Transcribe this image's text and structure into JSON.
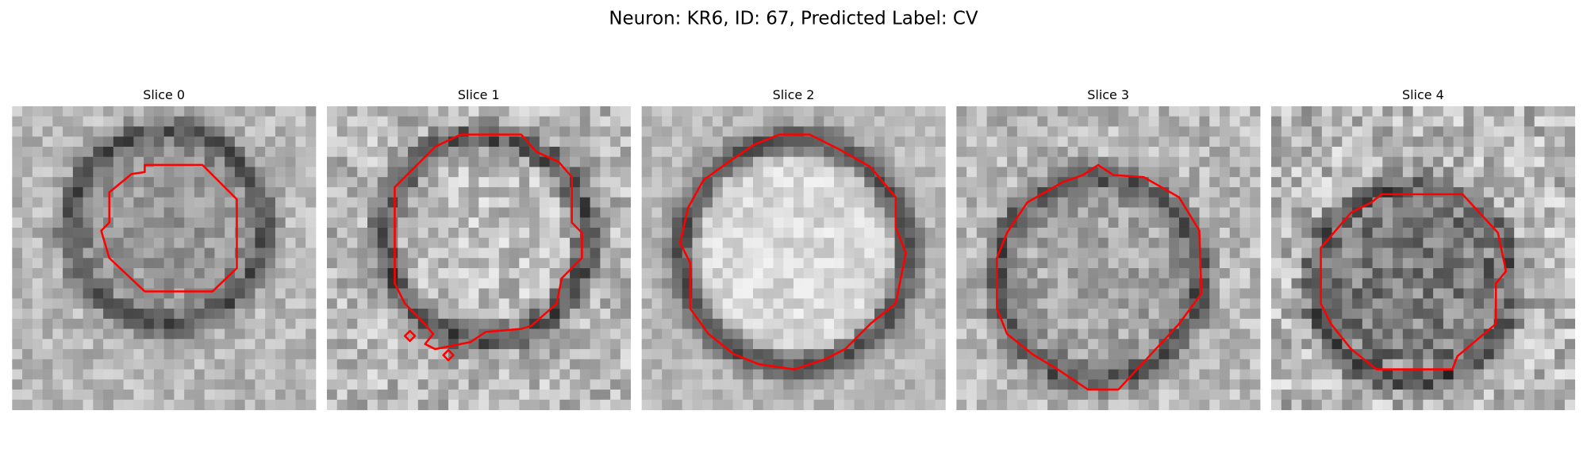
{
  "header": {
    "title": "Neuron: KR6, ID: 67, Predicted Label: CV"
  },
  "panels": [
    {
      "title": "Slice 0"
    },
    {
      "title": "Slice 1"
    },
    {
      "title": "Slice 2"
    },
    {
      "title": "Slice 3"
    },
    {
      "title": "Slice 4"
    }
  ]
}
